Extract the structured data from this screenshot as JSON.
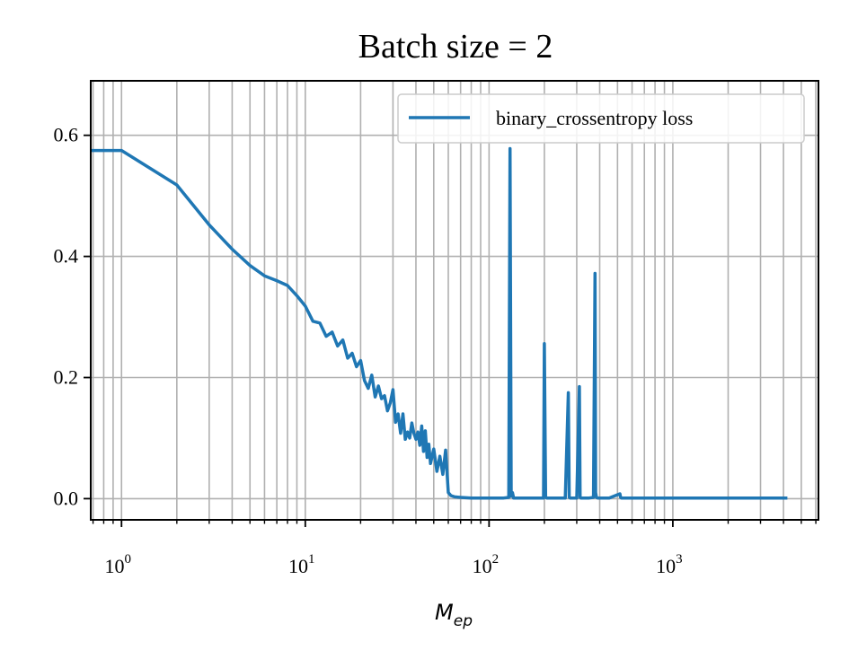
{
  "chart_data": {
    "type": "line",
    "title": "Batch size = 2",
    "xlabel": "M",
    "xlabel_subscript": "ep",
    "ylabel": "",
    "xscale": "log",
    "xlim": [
      0.68,
      6200
    ],
    "ylim": [
      -0.035,
      0.69
    ],
    "grid": true,
    "legend_position": "top-right",
    "x_ticks": [
      {
        "value": 1,
        "base": "10",
        "exp": "0"
      },
      {
        "value": 10,
        "base": "10",
        "exp": "1"
      },
      {
        "value": 100,
        "base": "10",
        "exp": "2"
      },
      {
        "value": 1000,
        "base": "10",
        "exp": "3"
      }
    ],
    "y_ticks": [
      {
        "value": 0.0,
        "label": "0.0"
      },
      {
        "value": 0.2,
        "label": "0.2"
      },
      {
        "value": 0.4,
        "label": "0.4"
      },
      {
        "value": 0.6,
        "label": "0.6"
      }
    ],
    "series": [
      {
        "name": "binary_crossentropy loss",
        "color": "#1f77b4",
        "x": [
          0.68,
          1,
          2,
          3,
          4,
          5,
          6,
          7,
          8,
          9,
          10,
          11,
          12,
          13,
          14,
          15,
          16,
          17,
          18,
          19,
          20,
          21,
          22,
          23,
          24,
          25,
          26,
          27,
          28,
          29,
          30,
          31,
          32,
          33,
          34,
          35,
          36,
          37,
          38,
          39,
          40,
          41,
          42,
          43,
          44,
          45,
          46,
          47,
          48,
          50,
          52,
          54,
          56,
          58,
          60,
          62,
          65,
          70,
          80,
          90,
          100,
          110,
          120,
          128,
          130,
          132,
          134,
          136,
          140,
          150,
          180,
          198,
          200,
          203,
          206,
          210,
          230,
          260,
          270,
          273,
          276,
          280,
          300,
          310,
          313,
          316,
          320,
          350,
          370,
          377,
          380,
          384,
          390,
          450,
          515,
          520,
          525,
          600,
          1000,
          2000,
          4200
        ],
        "y": [
          0.575,
          0.575,
          0.518,
          0.452,
          0.412,
          0.385,
          0.368,
          0.36,
          0.352,
          0.335,
          0.318,
          0.293,
          0.29,
          0.268,
          0.275,
          0.252,
          0.262,
          0.232,
          0.24,
          0.218,
          0.228,
          0.195,
          0.182,
          0.204,
          0.168,
          0.186,
          0.165,
          0.17,
          0.145,
          0.158,
          0.18,
          0.126,
          0.14,
          0.108,
          0.14,
          0.098,
          0.11,
          0.1,
          0.125,
          0.108,
          0.098,
          0.11,
          0.088,
          0.12,
          0.078,
          0.112,
          0.068,
          0.09,
          0.058,
          0.082,
          0.045,
          0.07,
          0.04,
          0.08,
          0.01,
          0.005,
          0.003,
          0.002,
          0.001,
          0.001,
          0.001,
          0.001,
          0.001,
          0.002,
          0.578,
          0.004,
          0.01,
          0.001,
          0.001,
          0.001,
          0.001,
          0.001,
          0.256,
          0.003,
          0.001,
          0.001,
          0.001,
          0.001,
          0.175,
          0.002,
          0.001,
          0.001,
          0.001,
          0.185,
          0.002,
          0.001,
          0.001,
          0.001,
          0.002,
          0.372,
          0.01,
          0.002,
          0.001,
          0.001,
          0.008,
          0.002,
          0.001,
          0.001,
          0.001,
          0.001,
          0.001
        ]
      }
    ]
  }
}
